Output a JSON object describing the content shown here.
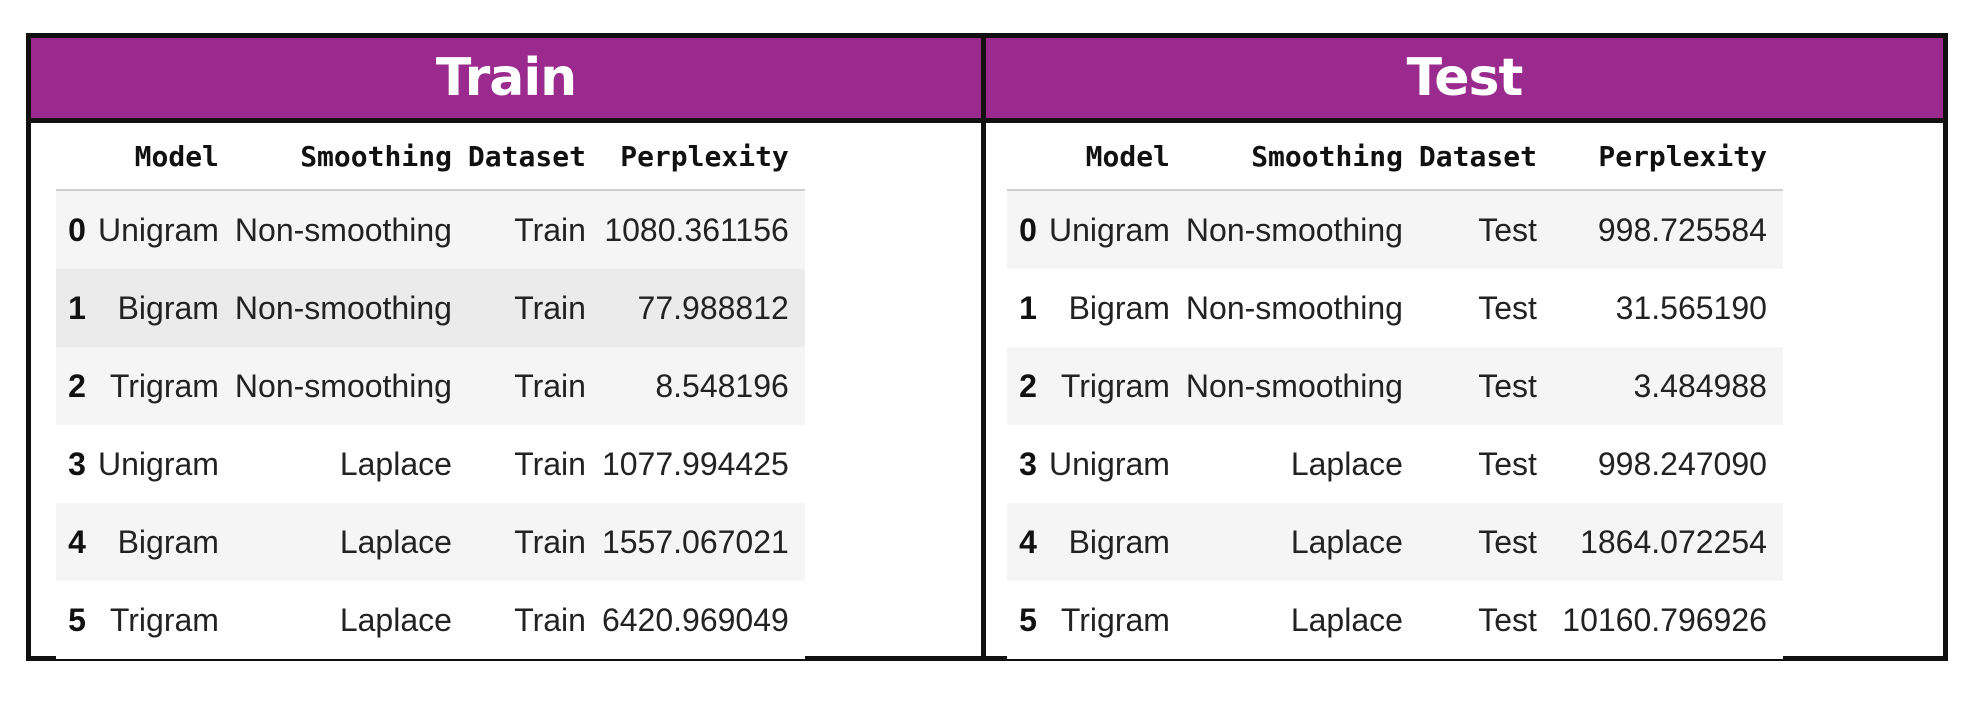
{
  "train": {
    "title": "Train",
    "columns": [
      "",
      "Model",
      "Smoothing",
      "Dataset",
      "Perplexity"
    ],
    "rows": [
      {
        "index": "0",
        "model": "Unigram",
        "smoothing": "Non-smoothing",
        "dataset": "Train",
        "perplexity": "1080.361156"
      },
      {
        "index": "1",
        "model": "Bigram",
        "smoothing": "Non-smoothing",
        "dataset": "Train",
        "perplexity": "77.988812"
      },
      {
        "index": "2",
        "model": "Trigram",
        "smoothing": "Non-smoothing",
        "dataset": "Train",
        "perplexity": "8.548196"
      },
      {
        "index": "3",
        "model": "Unigram",
        "smoothing": "Laplace",
        "dataset": "Train",
        "perplexity": "1077.994425"
      },
      {
        "index": "4",
        "model": "Bigram",
        "smoothing": "Laplace",
        "dataset": "Train",
        "perplexity": "1557.067021"
      },
      {
        "index": "5",
        "model": "Trigram",
        "smoothing": "Laplace",
        "dataset": "Train",
        "perplexity": "6420.969049"
      }
    ]
  },
  "test": {
    "title": "Test",
    "columns": [
      "",
      "Model",
      "Smoothing",
      "Dataset",
      "Perplexity"
    ],
    "rows": [
      {
        "index": "0",
        "model": "Unigram",
        "smoothing": "Non-smoothing",
        "dataset": "Test",
        "perplexity": "998.725584"
      },
      {
        "index": "1",
        "model": "Bigram",
        "smoothing": "Non-smoothing",
        "dataset": "Test",
        "perplexity": "31.565190"
      },
      {
        "index": "2",
        "model": "Trigram",
        "smoothing": "Non-smoothing",
        "dataset": "Test",
        "perplexity": "3.484988"
      },
      {
        "index": "3",
        "model": "Unigram",
        "smoothing": "Laplace",
        "dataset": "Test",
        "perplexity": "998.247090"
      },
      {
        "index": "4",
        "model": "Bigram",
        "smoothing": "Laplace",
        "dataset": "Test",
        "perplexity": "1864.072254"
      },
      {
        "index": "5",
        "model": "Trigram",
        "smoothing": "Laplace",
        "dataset": "Test",
        "perplexity": "10160.796926"
      }
    ]
  },
  "colors": {
    "banner": "#9b2a8e",
    "banner_text": "#ffffff",
    "border": "#111111",
    "row_stripe": "#f5f5f5",
    "row_highlight": "#ebebeb"
  }
}
